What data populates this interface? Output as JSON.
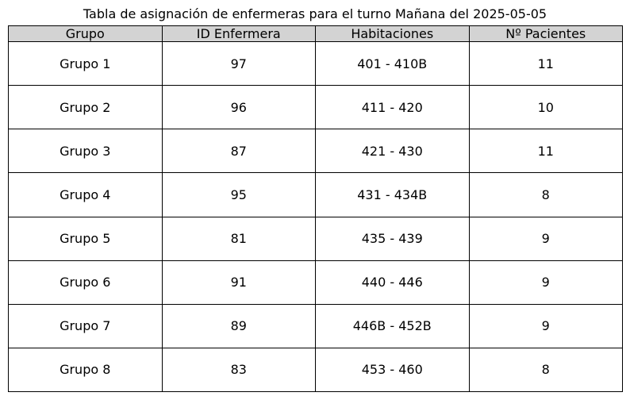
{
  "chart_data": {
    "type": "table",
    "title": "Tabla de asignación de enfermeras para el turno Mañana del 2025-05-05",
    "header_color": "#d3d3d3",
    "columns": [
      "Grupo",
      "ID Enfermera",
      "Habitaciones",
      "Nº Pacientes"
    ],
    "rows": [
      [
        "Grupo 1",
        "97",
        "401 - 410B",
        "11"
      ],
      [
        "Grupo 2",
        "96",
        "411 - 420",
        "10"
      ],
      [
        "Grupo 3",
        "87",
        "421 - 430",
        "11"
      ],
      [
        "Grupo 4",
        "95",
        "431 - 434B",
        "8"
      ],
      [
        "Grupo 5",
        "81",
        "435 - 439",
        "9"
      ],
      [
        "Grupo 6",
        "91",
        "440 - 446",
        "9"
      ],
      [
        "Grupo 7",
        "89",
        "446B - 452B",
        "9"
      ],
      [
        "Grupo 8",
        "83",
        "453 - 460",
        "8"
      ]
    ]
  }
}
